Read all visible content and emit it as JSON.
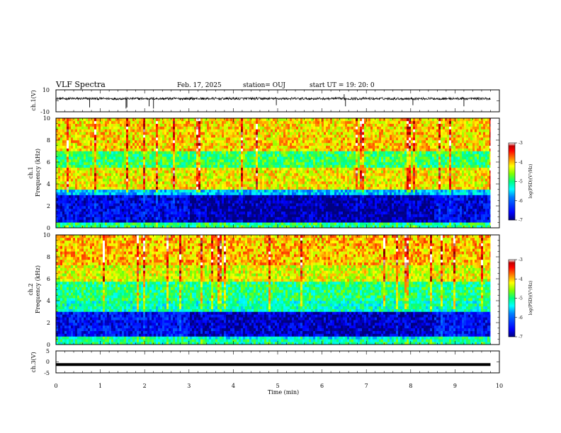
{
  "header": {
    "title": "VLF Spectra",
    "date": "Feb. 17, 2025",
    "station": "station= OUJ",
    "start_ut": "start  UT  =   19: 20: 0"
  },
  "chart_data": [
    {
      "type": "line",
      "name": "waveform ch1",
      "ylabel": "ch.1(V)",
      "ylim": [
        -10,
        10
      ],
      "yticks": [
        "10",
        "-10"
      ],
      "xlim": [
        0,
        10
      ],
      "line_color": "#000000"
    },
    {
      "type": "heatmap",
      "name": "spectrogram ch1",
      "ylabel_top": "ch.1",
      "ylabel": "Frequency  (kHz)",
      "ylim": [
        0,
        10
      ],
      "yticks": [
        "0",
        "2",
        "4",
        "6",
        "8",
        "10"
      ],
      "xlim": [
        0,
        10
      ],
      "data_end_min": 9.8,
      "colorbar": {
        "label": "log(PSD)(V²/Hz)",
        "range": [
          -7,
          -3
        ],
        "ticks": [
          "-3",
          "-4",
          "-5",
          "-6",
          "-7"
        ],
        "colormap": [
          "#00007f",
          "#0000ff",
          "#0080ff",
          "#00ffff",
          "#00ff80",
          "#80ff00",
          "#ffff00",
          "#ff8000",
          "#ff0000",
          "#800000",
          "#ffffff"
        ]
      },
      "bands": [
        {
          "f": [
            0.0,
            0.4
          ],
          "level": -5.0
        },
        {
          "f": [
            0.4,
            2.8
          ],
          "level": -6.6
        },
        {
          "f": [
            2.8,
            3.4
          ],
          "level": -5.6
        },
        {
          "f": [
            3.4,
            5.4
          ],
          "level": -4.2
        },
        {
          "f": [
            5.4,
            7.0
          ],
          "level": -4.9
        },
        {
          "f": [
            7.0,
            10.0
          ],
          "level": -4.1
        }
      ]
    },
    {
      "type": "heatmap",
      "name": "spectrogram ch2",
      "ylabel_top": "ch.2",
      "ylabel": "Frequency  (kHz)",
      "ylim": [
        0,
        10
      ],
      "yticks": [
        "0",
        "2",
        "4",
        "6",
        "8",
        "10"
      ],
      "xlim": [
        0,
        10
      ],
      "data_end_min": 9.8,
      "colorbar": {
        "label": "log(PSD)(V²/Hz)",
        "range": [
          -7,
          -3
        ],
        "ticks": [
          "-3",
          "-4",
          "-5",
          "-6",
          "-7"
        ],
        "colormap": [
          "#00007f",
          "#0000ff",
          "#0080ff",
          "#00ffff",
          "#00ff80",
          "#80ff00",
          "#ffff00",
          "#ff8000",
          "#ff0000",
          "#800000",
          "#ffffff"
        ]
      },
      "bands": [
        {
          "f": [
            0.0,
            0.6
          ],
          "level": -5.1
        },
        {
          "f": [
            0.6,
            2.8
          ],
          "level": -6.5
        },
        {
          "f": [
            2.8,
            4.0
          ],
          "level": -5.2
        },
        {
          "f": [
            4.0,
            5.6
          ],
          "level": -5.0
        },
        {
          "f": [
            5.6,
            7.2
          ],
          "level": -4.3
        },
        {
          "f": [
            7.2,
            10.0
          ],
          "level": -4.0
        }
      ]
    },
    {
      "type": "line",
      "name": "waveform ch3",
      "ylabel": "ch.3(V)",
      "ylim": [
        -5,
        5
      ],
      "yticks": [
        "5",
        "0",
        "-5"
      ],
      "xlim": [
        0,
        10
      ],
      "constant_value": -1.2,
      "line_color": "#000000"
    }
  ],
  "xaxis": {
    "label": "Time  (min)",
    "ticks": [
      "0",
      "1",
      "2",
      "3",
      "4",
      "5",
      "6",
      "7",
      "8",
      "9",
      "10"
    ]
  }
}
